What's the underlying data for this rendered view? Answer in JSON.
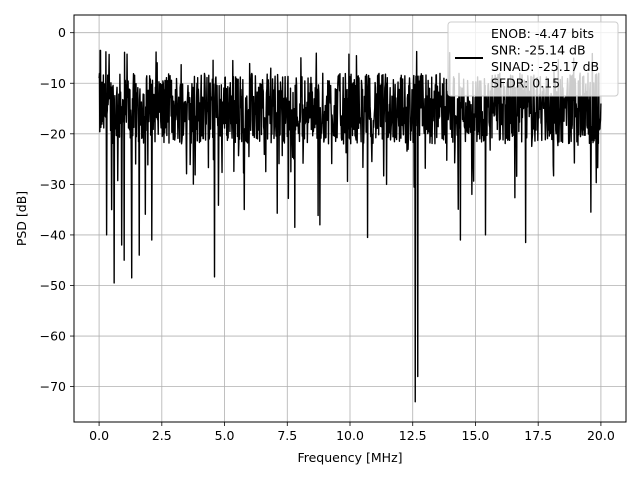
{
  "chart_data": {
    "type": "line",
    "xlabel": "Frequency [MHz]",
    "ylabel": "PSD [dB]",
    "xlim": [
      -1.0,
      21.0
    ],
    "ylim": [
      -77.0,
      3.5
    ],
    "xticks": [
      0.0,
      2.5,
      5.0,
      7.5,
      10.0,
      12.5,
      15.0,
      17.5,
      20.0
    ],
    "xtick_labels": [
      "0.0",
      "2.5",
      "5.0",
      "7.5",
      "10.0",
      "12.5",
      "15.0",
      "17.5",
      "20.0"
    ],
    "yticks": [
      0,
      -10,
      -20,
      -30,
      -40,
      -50,
      -60,
      -70
    ],
    "ytick_labels": [
      "0",
      "−10",
      "−20",
      "−30",
      "−40",
      "−50",
      "−60",
      "−70"
    ],
    "grid": true,
    "legend": "top-right",
    "series": [
      {
        "name": "ENOB: -4.47 bits\nSNR: -25.14 dB\nSINAD: -25.17 dB\nSFDR: 0.15",
        "color": "#000000",
        "description_points": {
          "x": [
            0.0,
            0.05,
            0.1,
            0.3,
            0.5,
            0.6,
            0.9,
            1.0,
            1.3,
            1.6,
            2.1,
            4.6,
            7.8,
            8.8,
            10.7,
            12.6,
            12.7,
            14.4,
            15.4,
            17.0,
            19.6,
            20.0
          ],
          "y": [
            -9.0,
            -3.5,
            -12.0,
            -40.0,
            -35.0,
            -49.5,
            -42.0,
            -45.0,
            -48.5,
            -44.0,
            -41.0,
            -48.3,
            -38.5,
            -38.0,
            -40.5,
            -73.0,
            -68.0,
            -41.0,
            -40.0,
            -41.5,
            -35.5,
            -14.0
          ]
        },
        "level_db": -15.0
      }
    ]
  },
  "legend": {
    "lines": [
      "ENOB: -4.47 bits",
      "SNR: -25.14 dB",
      "SINAD: -25.17 dB",
      "SFDR: 0.15"
    ]
  }
}
